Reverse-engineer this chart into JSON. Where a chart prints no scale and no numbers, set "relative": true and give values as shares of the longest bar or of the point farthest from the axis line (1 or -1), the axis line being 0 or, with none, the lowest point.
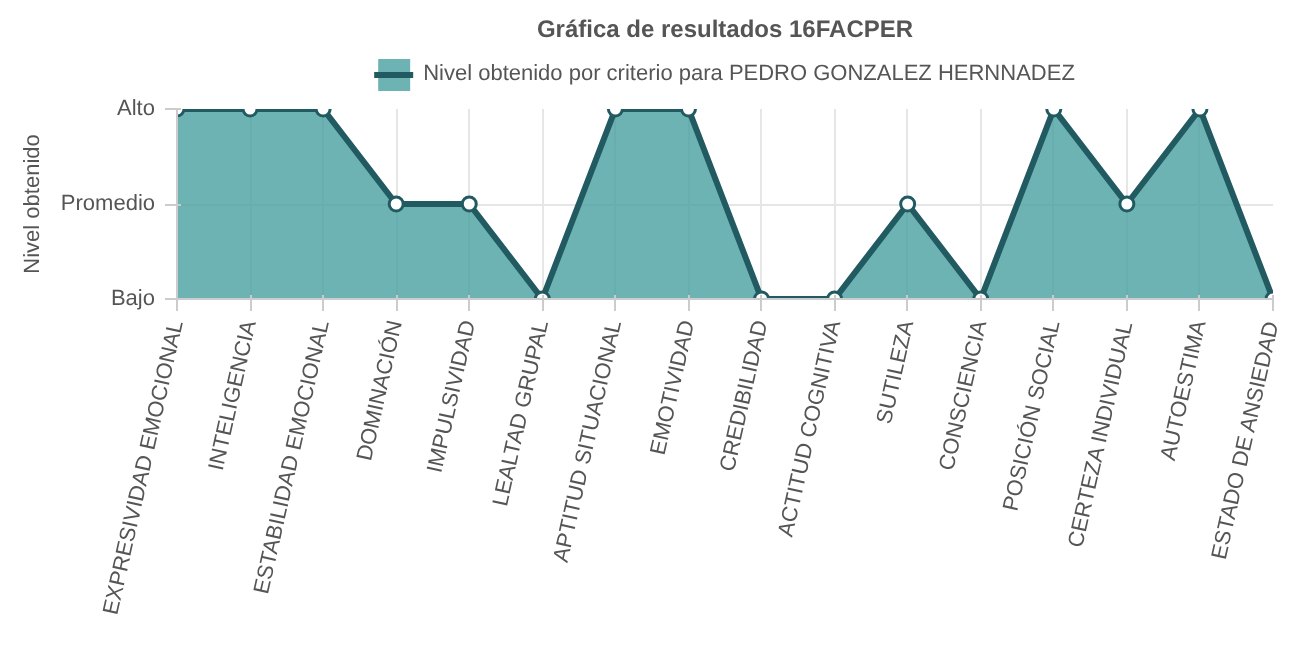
{
  "chart_data": {
    "type": "area",
    "title": "Gráfica de resultados 16FACPER",
    "ylabel": "Nivel obtenido",
    "relative": true,
    "categories": [
      "EXPRESIVIDAD EMOCIONAL",
      "INTELIGENCIA",
      "ESTABILIDAD EMOCIONAL",
      "DOMINACIÓN",
      "IMPULSIVIDAD",
      "LEALTAD GRUPAL",
      "APTITUD SITUACIONAL",
      "EMOTIVIDAD",
      "CREDIBILIDAD",
      "ACTITUD COGNITIVA",
      "SUTILEZA",
      "CONSCIENCIA",
      "POSICIÓN SOCIAL",
      "CERTEZA INDIVIDUAL",
      "AUTOESTIMA",
      "ESTADO DE ANSIEDAD"
    ],
    "series": [
      {
        "name": "Nivel obtenido por criterio para PEDRO GONZALEZ HERNNADEZ",
        "color": "#225a62",
        "values": [
          1,
          1,
          1,
          0.5,
          0.5,
          0,
          1,
          1,
          0,
          0,
          0.5,
          0,
          1,
          0.5,
          1,
          0
        ]
      }
    ],
    "annotations": [
      "Alto",
      "Promedio",
      "Bajo"
    ],
    "grid": true,
    "legend": "top",
    "marker": "circle"
  }
}
